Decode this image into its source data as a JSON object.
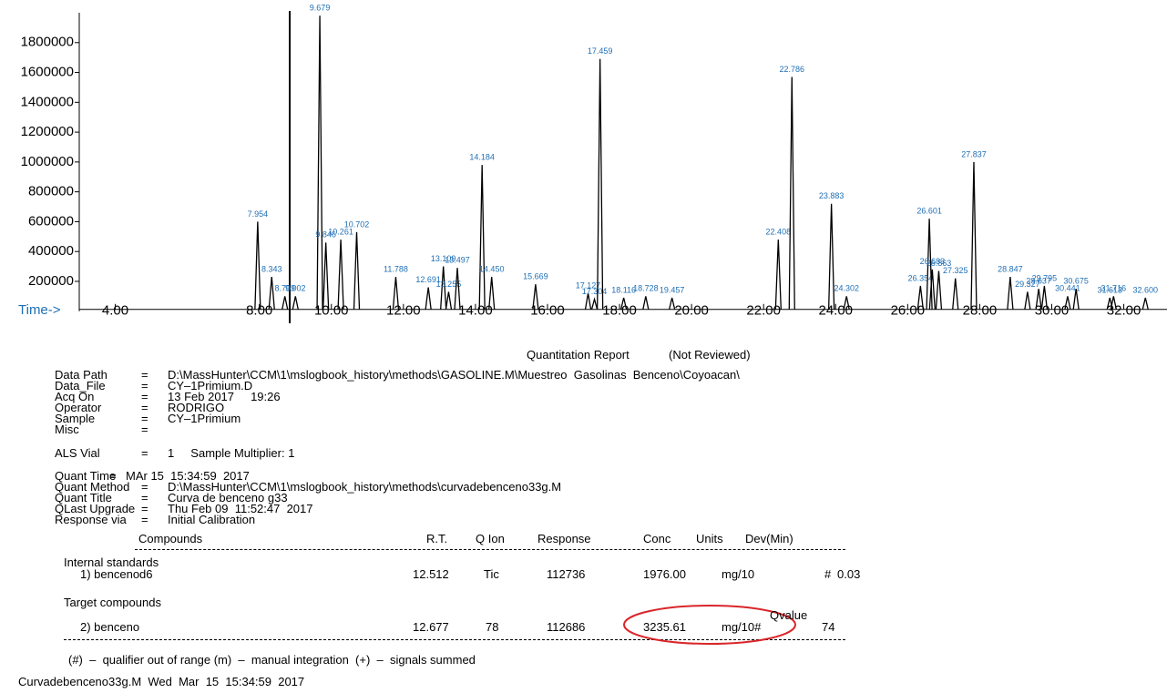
{
  "chart_data": {
    "type": "line",
    "x_axis_label": "Time->",
    "xlim": [
      3,
      33.2
    ],
    "ylim": [
      0,
      2000000
    ],
    "xticks": [
      {
        "value": 4,
        "label": "4.00"
      },
      {
        "value": 8,
        "label": "8.00"
      },
      {
        "value": 10,
        "label": "10.00"
      },
      {
        "value": 12,
        "label": "12.00"
      },
      {
        "value": 14,
        "label": "14.00"
      },
      {
        "value": 16,
        "label": "16.00"
      },
      {
        "value": 18,
        "label": "18.00"
      },
      {
        "value": 20,
        "label": "20.00"
      },
      {
        "value": 22,
        "label": "22.00"
      },
      {
        "value": 24,
        "label": "24.00"
      },
      {
        "value": 26,
        "label": "26.00"
      },
      {
        "value": 28,
        "label": "28.00"
      },
      {
        "value": 30,
        "label": "30.00"
      },
      {
        "value": 32,
        "label": "32.00"
      }
    ],
    "yticks": [
      200000,
      400000,
      600000,
      800000,
      1000000,
      1200000,
      1400000,
      1600000,
      1800000
    ],
    "color": "#000000",
    "label_color": "#1f6fb5",
    "peaks": [
      {
        "x": 7.954,
        "label": "7.954",
        "height": 600000
      },
      {
        "x": 8.343,
        "label": "8.343",
        "height": 230000
      },
      {
        "x": 8.709,
        "label": "8.709",
        "height": 100000
      },
      {
        "x": 9.002,
        "label": "9.002",
        "height": 100000
      },
      {
        "x": 9.679,
        "label": "9.679",
        "height": 1980000
      },
      {
        "x": 9.846,
        "label": "9.846",
        "height": 460000
      },
      {
        "x": 10.261,
        "label": "10.261",
        "height": 480000
      },
      {
        "x": 10.702,
        "label": "10.702",
        "height": 530000
      },
      {
        "x": 11.788,
        "label": "11.788",
        "height": 230000
      },
      {
        "x": 12.691,
        "label": "12.691",
        "height": 160000
      },
      {
        "x": 13.109,
        "label": "13.109",
        "height": 300000
      },
      {
        "x": 13.255,
        "label": "13.255",
        "height": 130000
      },
      {
        "x": 13.497,
        "label": "13.497",
        "height": 290000
      },
      {
        "x": 14.184,
        "label": "14.184",
        "height": 980000
      },
      {
        "x": 14.45,
        "label": "14.450",
        "height": 230000
      },
      {
        "x": 15.669,
        "label": "15.669",
        "height": 180000
      },
      {
        "x": 17.127,
        "label": "17.127",
        "height": 120000
      },
      {
        "x": 17.304,
        "label": "17.304",
        "height": 80000
      },
      {
        "x": 17.459,
        "label": "17.459",
        "height": 1690000
      },
      {
        "x": 18.116,
        "label": "18.116",
        "height": 90000
      },
      {
        "x": 18.728,
        "label": "18.728",
        "height": 100000
      },
      {
        "x": 19.457,
        "label": "19.457",
        "height": 90000
      },
      {
        "x": 22.408,
        "label": "22.408",
        "height": 480000
      },
      {
        "x": 22.786,
        "label": "22.786",
        "height": 1570000
      },
      {
        "x": 23.883,
        "label": "23.883",
        "height": 720000
      },
      {
        "x": 24.302,
        "label": "24.302",
        "height": 100000
      },
      {
        "x": 26.354,
        "label": "26.354",
        "height": 170000
      },
      {
        "x": 26.601,
        "label": "26.601",
        "height": 620000
      },
      {
        "x": 26.683,
        "label": "26.683",
        "height": 280000
      },
      {
        "x": 26.863,
        "label": "26.863",
        "height": 270000
      },
      {
        "x": 27.325,
        "label": "27.325",
        "height": 220000
      },
      {
        "x": 27.837,
        "label": "27.837",
        "height": 1000000
      },
      {
        "x": 28.847,
        "label": "28.847",
        "height": 230000
      },
      {
        "x": 29.327,
        "label": "29.327",
        "height": 130000
      },
      {
        "x": 29.637,
        "label": "29.637",
        "height": 150000
      },
      {
        "x": 29.795,
        "label": "29.795",
        "height": 170000
      },
      {
        "x": 30.441,
        "label": "30.441",
        "height": 100000
      },
      {
        "x": 30.675,
        "label": "30.675",
        "height": 150000
      },
      {
        "x": 31.613,
        "label": "31.613",
        "height": 90000
      },
      {
        "x": 31.716,
        "label": "31.716",
        "height": 100000
      },
      {
        "x": 32.6,
        "label": "32.600",
        "height": 90000
      }
    ]
  },
  "report": {
    "title": "Quantitation Report",
    "status": "(Not Reviewed)",
    "info": [
      [
        "Data Path",
        "=",
        "D:\\MassHunter\\CCM\\1\\mslogbook_history\\methods\\GASOLINE.M\\Muestreo  Gasolinas  Benceno\\Coyoacan\\"
      ],
      [
        "Data_File",
        "=",
        "CY–1Primium.D"
      ],
      [
        "Acq On",
        "=",
        "13 Feb 2017     19:26"
      ],
      [
        "Operator",
        "=",
        "RODRIGO"
      ],
      [
        "Sample",
        "=",
        "CY–1Primium"
      ],
      [
        "Misc",
        "="
      ],
      [
        "ALS Vial",
        "=",
        "1     Sample Multiplier: 1"
      ]
    ],
    "quant": [
      [
        "Quant Time",
        "=",
        "MAr 15  15:34:59  2017"
      ],
      [
        "Quant Method",
        "=",
        "D:\\MassHunter\\CCM\\1\\mslogbook_history\\methods\\curvadebenceno33g.M"
      ],
      [
        "Quant Title",
        "=",
        "Curva de benceno g33"
      ],
      [
        "QLast Upgrade",
        "=",
        "Thu Feb 09  11:52:47  2017"
      ],
      [
        "Response via",
        "=",
        "Initial Calibration"
      ]
    ],
    "table": {
      "columns": [
        "Compounds",
        "R.T.",
        "Q Ion",
        "Response",
        "Conc",
        "Units",
        "Dev(Min)"
      ],
      "groups": [
        {
          "name": "Internal standards",
          "row": [
            "1) bencenod6",
            "12.512",
            "Tic",
            "112736",
            "1976.00",
            "mg/10",
            "#",
            "0.03"
          ]
        },
        {
          "name": "Target compounds",
          "extra_header": "Qvalue",
          "row": [
            "2) benceno",
            "12.677",
            "78",
            "112686",
            "3235.61",
            "mg/10#",
            "74"
          ]
        }
      ]
    },
    "footnote": "(#)  –  qualifier out of range (m)  –  manual integration  (+)  –  signals summed",
    "footer": "Curvadebenceno33g.M  Wed  Mar  15  15:34:59  2017"
  }
}
